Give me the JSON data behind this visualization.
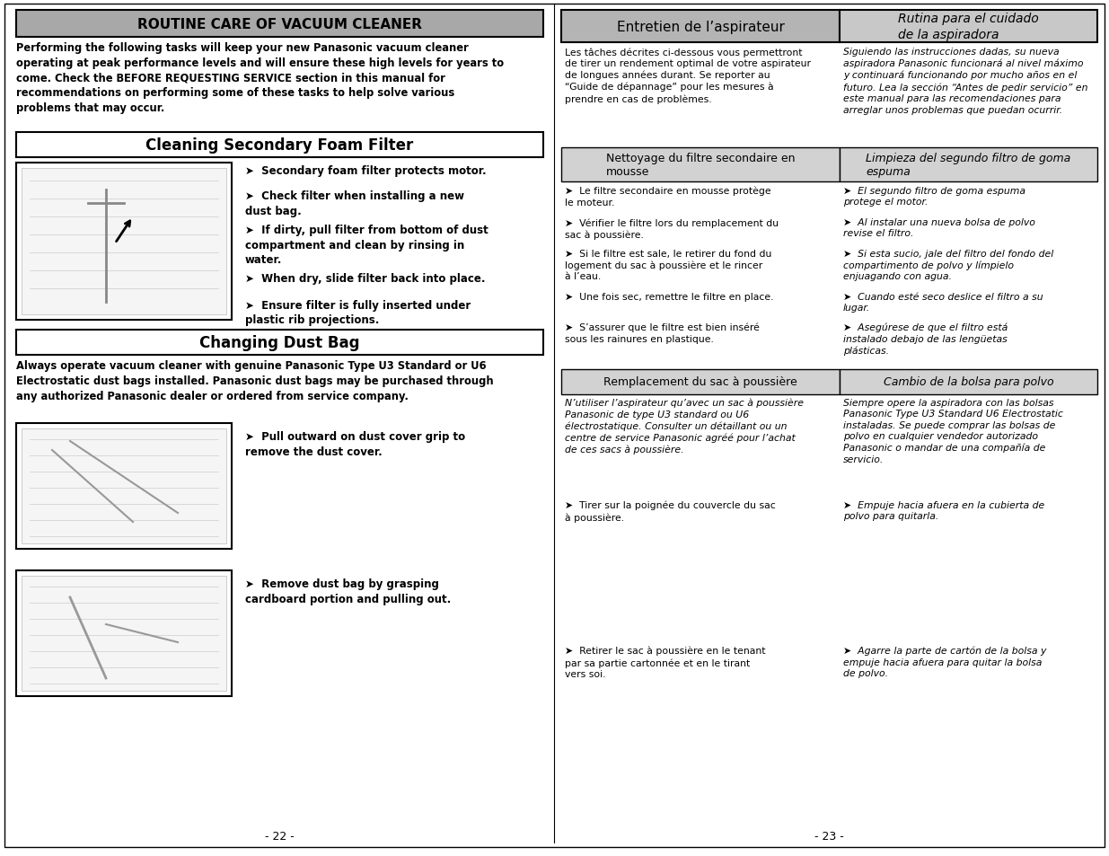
{
  "page_bg": "#ffffff",
  "left_header_text": "ROUTINE CARE OF VACUUM CLEANER",
  "left_header_bg": "#a8a8a8",
  "left_intro": "Performing the following tasks will keep your new Panasonic vacuum cleaner\noperating at peak performance levels and will ensure these high levels for years to\ncome. Check the BEFORE REQUESTING SERVICE section in this manual for\nrecommendations on performing some of these tasks to help solve various\nproblems that may occur.",
  "section1_title": "Cleaning Secondary Foam Filter",
  "section1_bullets": [
    "Secondary foam filter protects motor.",
    "Check filter when installing a new\ndust bag.",
    "If dirty, pull filter from bottom of dust\ncompartment and clean by rinsing in\nwater.",
    "When dry, slide filter back into place.",
    "Ensure filter is fully inserted under\nplastic rib projections."
  ],
  "section2_title": "Changing Dust Bag",
  "section2_intro": "Always operate vacuum cleaner with genuine Panasonic Type U3 Standard or U6\nElectrostatic dust bags installed. Panasonic dust bags may be purchased through\nany authorized Panasonic dealer or ordered from service company.",
  "section2_bullet1": "Pull outward on dust cover grip to\nremove the dust cover.",
  "section2_bullet2": "Remove dust bag by grasping\ncardboard portion and pulling out.",
  "left_page_num": "- 22 -",
  "right_header1_text": "Entretien de l’aspirateur",
  "right_header1_bg": "#b4b4b4",
  "right_header2_text": "Rutina para el cuidado\nde la aspiradora",
  "right_header2_bg": "#c8c8c8",
  "right_intro_fr": "Les tâches décrites ci-dessous vous permettront\nde tirer un rendement optimal de votre aspirateur\nde longues années durant. Se reporter au\n“Guide de dépannage” pour les mesures à\nprendre en cas de problèmes.",
  "right_intro_es": "Siguiendo las instrucciones dadas, su nueva\naspiradora Panasonic funcionará al nivel máximo\ny continuará funcionando por mucho años en el\nfuturo. Lea la sección “Antes de pedir servicio” en\neste manual para las recomendaciones para\narreglar unos problemas que puedan ocurrir.",
  "sect1_fr_title": "Nettoyage du filtre secondaire en\nmousse",
  "sect1_es_title": "Limpieza del segundo filtro de goma\nespuma",
  "sect1_fr_bullets": [
    "Le filtre secondaire en mousse protège\nle moteur.",
    "Vérifier le filtre lors du remplacement du\nsac à poussière.",
    "Si le filtre est sale, le retirer du fond du\nlogement du sac à poussière et le rincer\nà l’eau.",
    "Une fois sec, remettre le filtre en place.",
    "S’assurer que le filtre est bien inséré\nsous les rainures en plastique."
  ],
  "sect1_es_bullets": [
    "El segundo filtro de goma espuma\nprotege el motor.",
    "Al instalar una nueva bolsa de polvo\nrevise el filtro.",
    "Si esta sucio, jale del filtro del fondo del\ncompartimento de polvo y límpielo\nenjuagando con agua.",
    "Cuando esté seco deslice el filtro a su\nlugar.",
    "Asegúrese de que el filtro está\ninstalado debajo de las lengüetas\nplásticas."
  ],
  "sect2_fr_title": "Remplacement du sac à poussière",
  "sect2_es_title": "Cambio de la bolsa para polvo",
  "sect2_fr_intro": "N’utiliser l’aspirateur qu’avec un sac à poussière\nPanasonic de type U3 standard ou U6\nélectrostatique. Consulter un détaillant ou un\ncentre de service Panasonic agréé pour l’achat\nde ces sacs à poussière.",
  "sect2_es_intro": "Siempre opere la aspiradora con las bolsas\nPanasonic Type U3 Standard U6 Electrostatic\ninstaladas. Se puede comprar las bolsas de\npolvo en cualquier vendedor autorizado\nPanasonic o mandar de una compañía de\nservicio.",
  "sect2_fr_bullet1": "Tirer sur la poignée du couvercle du sac\nà poussière.",
  "sect2_es_bullet1": "Empuje hacia afuera en la cubierta de\npolvo para quitarla.",
  "sect2_fr_bullet2": "Retirer le sac à poussière en le tenant\npar sa partie cartonnée et en le tirant\nvers soi.",
  "sect2_es_bullet2": "Agarre la parte de cartón de la bolsa y\nempuje hacia afuera para quitar la bolsa\nde polvo.",
  "right_page_num": "- 23 -"
}
